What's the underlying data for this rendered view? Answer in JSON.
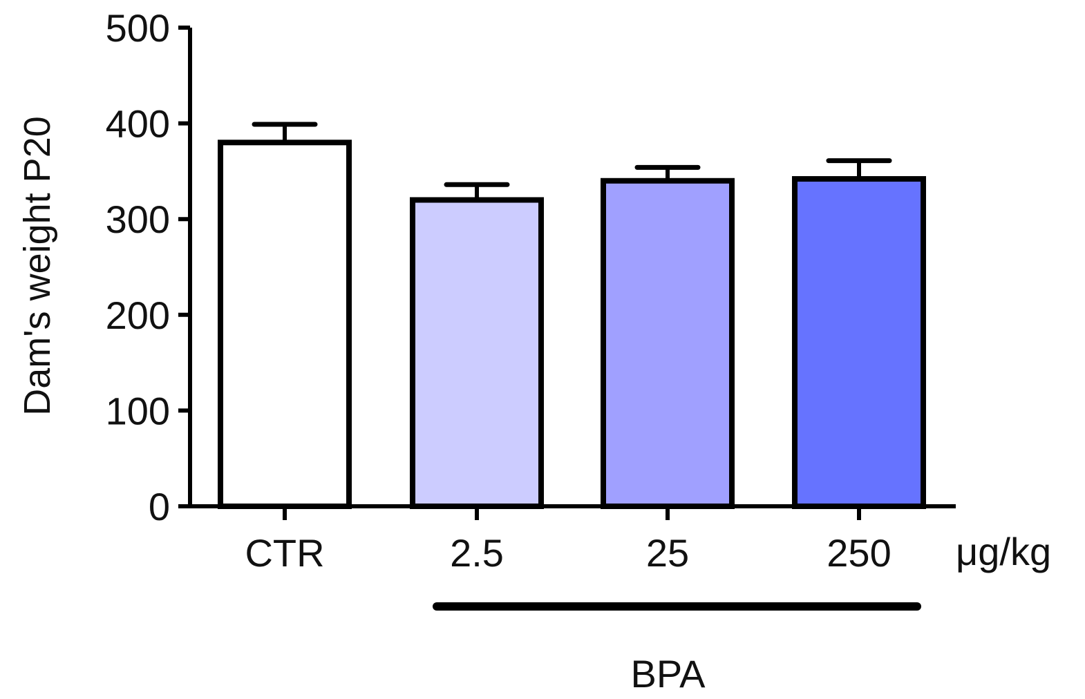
{
  "chart_data": {
    "type": "bar",
    "categories": [
      "CTR",
      "2.5",
      "25",
      "250"
    ],
    "values": [
      380,
      320,
      340,
      342
    ],
    "error_upper": [
      399,
      336,
      354,
      361
    ],
    "colors": [
      "#ffffff",
      "#ccccff",
      "#a0a0ff",
      "#6673ff"
    ],
    "ylabel": "Dam's weight P20",
    "ylim": [
      0,
      500
    ],
    "yticks": [
      0,
      100,
      200,
      300,
      400,
      500
    ],
    "x_unit": "μg/kg",
    "group": {
      "label": "BPA",
      "categories": [
        "2.5",
        "25",
        "250"
      ]
    },
    "grid": false,
    "legend": false
  }
}
